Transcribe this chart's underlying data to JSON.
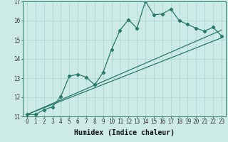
{
  "xlabel": "Humidex (Indice chaleur)",
  "xlim": [
    -0.5,
    23.5
  ],
  "ylim": [
    11,
    17
  ],
  "xticks": [
    0,
    1,
    2,
    3,
    4,
    5,
    6,
    7,
    8,
    9,
    10,
    11,
    12,
    13,
    14,
    15,
    16,
    17,
    18,
    19,
    20,
    21,
    22,
    23
  ],
  "yticks": [
    11,
    12,
    13,
    14,
    15,
    16,
    17
  ],
  "bg_color": "#cceae6",
  "grid_color": "#aad4d0",
  "line_color": "#2a7a68",
  "series1_x": [
    0,
    1,
    2,
    3,
    4,
    5,
    6,
    7,
    8,
    9,
    10,
    11,
    12,
    13,
    14,
    15,
    16,
    17,
    18,
    19,
    20,
    21,
    22,
    23
  ],
  "series1_y": [
    11.1,
    11.1,
    11.35,
    11.5,
    12.05,
    13.1,
    13.2,
    13.05,
    12.65,
    13.3,
    14.5,
    15.5,
    16.05,
    15.6,
    17.0,
    16.3,
    16.35,
    16.6,
    16.0,
    15.8,
    15.6,
    15.45,
    15.65,
    15.2
  ],
  "series2_x": [
    0,
    23
  ],
  "series2_y": [
    11.1,
    15.5
  ],
  "series3_x": [
    0,
    23
  ],
  "series3_y": [
    11.1,
    15.1
  ],
  "tick_fontsize": 5.5,
  "label_fontsize": 7.0
}
